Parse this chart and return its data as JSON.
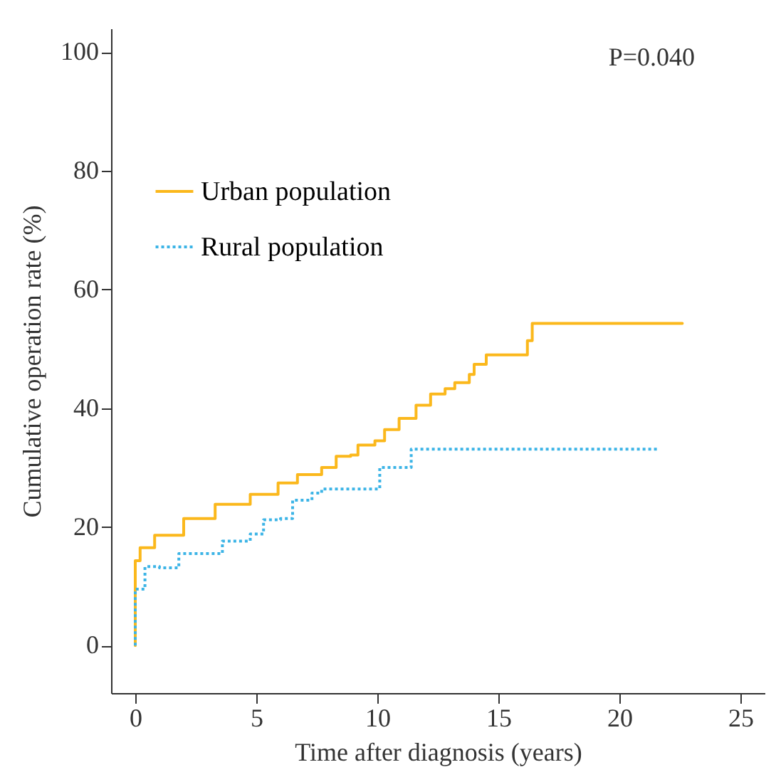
{
  "chart_data": {
    "type": "step",
    "xlabel": "Time after diagnosis (years)",
    "ylabel": "Cumulative operation rate (%)",
    "annotations": [
      "P=0.040"
    ],
    "xlim": [
      -1,
      26
    ],
    "xticks": [
      0,
      5,
      10,
      15,
      20,
      25
    ],
    "ylim": [
      -8,
      104
    ],
    "yticks": [
      0,
      20,
      40,
      60,
      80,
      100
    ],
    "grid": false,
    "legend": "top left",
    "series": [
      {
        "name": "Urban population",
        "color": "#fbb81c",
        "line_style": "solid",
        "x": [
          0,
          0,
          0.2,
          0.8,
          2,
          3.3,
          4.75,
          5.9,
          6.7,
          7.7,
          8.3,
          8.9,
          9.2,
          9.9,
          10.3,
          10.9,
          11.6,
          12.2,
          12.8,
          13.2,
          13.8,
          14,
          14.5,
          16.2,
          16.4,
          22.6
        ],
        "values": [
          0,
          14.3,
          16.5,
          18.6,
          21.4,
          23.8,
          25.5,
          27.4,
          28.8,
          30,
          31.9,
          32.1,
          33.8,
          34.5,
          36.4,
          38.3,
          40.5,
          42.4,
          43.3,
          44.3,
          45.7,
          47.4,
          49,
          51.4,
          54.3,
          54.3
        ]
      },
      {
        "name": "Rural population",
        "color": "#3cb4e6",
        "line_style": "dotted",
        "x": [
          0,
          0,
          0.4,
          1,
          1.8,
          2.7,
          3.6,
          4.75,
          5.3,
          6,
          6.5,
          7.3,
          7.7,
          9,
          10.1,
          11.3,
          11.4,
          21.6
        ],
        "values": [
          0,
          9.5,
          13.3,
          13.1,
          15.5,
          15.5,
          17.6,
          18.8,
          21.2,
          21.4,
          24.5,
          25.7,
          26.4,
          26.4,
          30,
          30,
          33.1,
          33.1
        ]
      }
    ]
  }
}
